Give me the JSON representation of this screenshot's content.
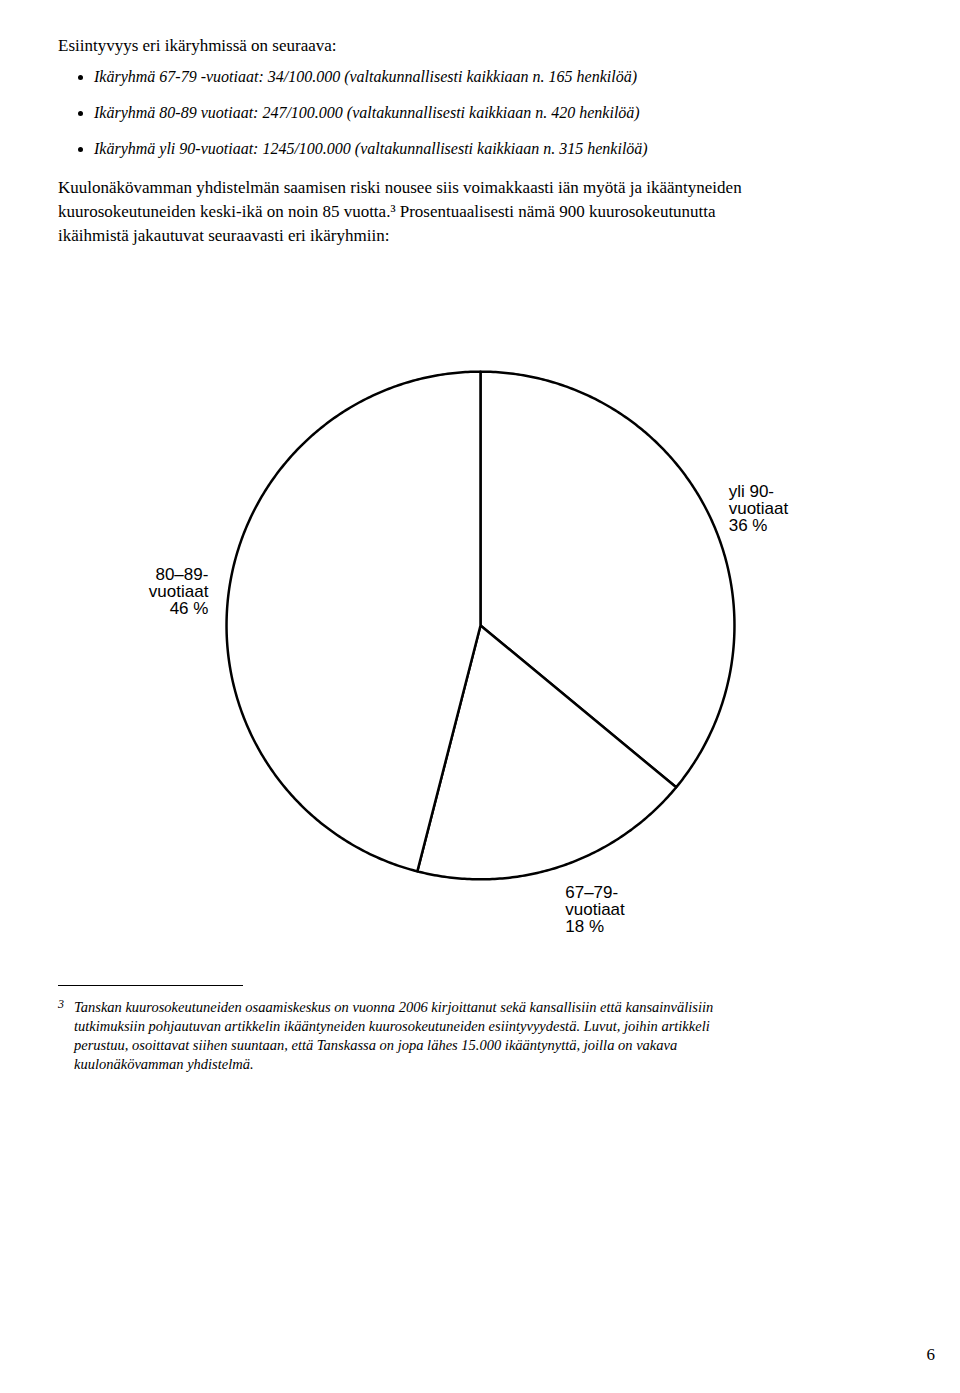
{
  "chart_data": {
    "type": "pie",
    "title": "Esiintyvyys eri ikäryhmissä on seuraava:",
    "categories": [
      "yli 90-\nvuotiaat",
      "67–79-\nvuotiaat",
      "80–89-\nvuotiaat"
    ],
    "values": [
      36,
      18,
      46
    ],
    "value_labels": [
      "36 %",
      "18 %",
      "46 %"
    ],
    "colors": [
      "#ffffff",
      "#ffffff",
      "#ffffff"
    ],
    "data_labels": true,
    "annotations": [
      "Ikäryhmä 67-79 -vuotiaat: 34/100.000 (valtakunnallisesti kaikkiaan n. 165 henkilöä)",
      "Ikäryhmä 80-89 vuotiaat: 247/100.000 (valtakunnallisesti kaikkiaan n. 420 henkilöä)",
      "Ikäryhmä yli 90-vuotiaat: 1245/100.000 (valtakunnallisesti kaikkiaan n. 315 henkilöä)",
      "Kuulonäkövamman yhdistelmän saamisen riski nousee siis voimakkaasti iän myötä ja ikääntyneiden",
      "kuurosokeutuneiden keski-ikä on noin 85 vuotta.³ Prosentuaalisesti nämä 900 kuurosokeutunutta",
      "ikäihmistä jakautuvat seuraavasti eri ikäryhmiin:",
      "3",
      "Tanskan kuurosokeutuneiden osaamiskeskus on vuonna 2006 kirjoittanut sekä kansallisiin että kansainvälisiin",
      "tutkimuksiin pohjautuvan artikkelin ikääntyneiden kuurosokeutuneiden esiintyvyydestä. Luvut, joihin artikkeli",
      "perustuu, osoittavat siihen suuntaan, että Tanskassa on jopa lähes 15.000 ikääntynyttä, joilla on vakava",
      "kuulonäkövamman yhdistelmä.",
      "6"
    ]
  }
}
